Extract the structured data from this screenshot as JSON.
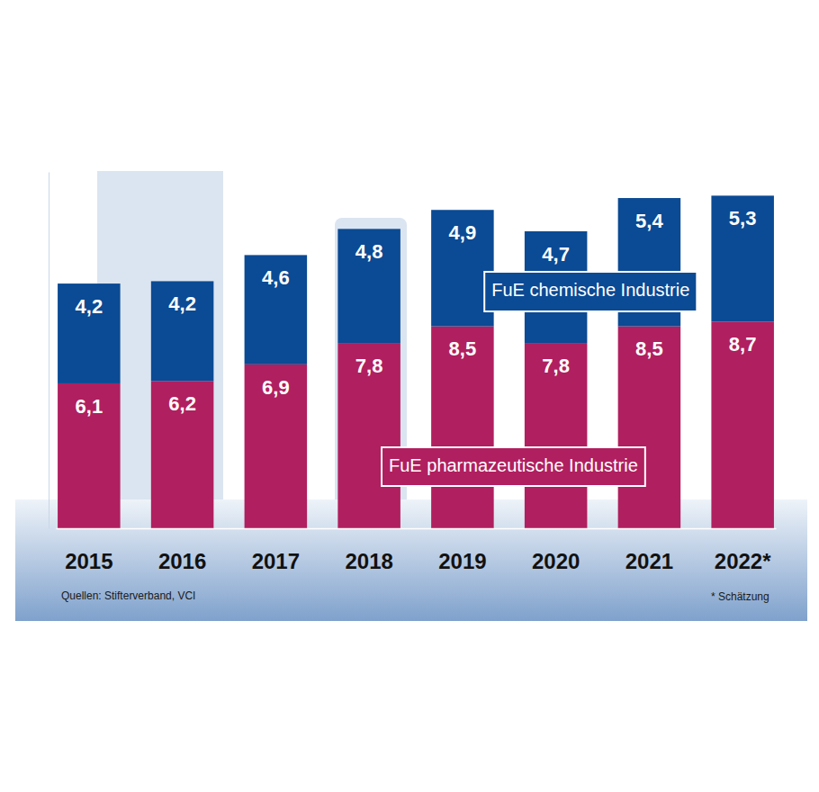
{
  "chart_data": {
    "type": "bar",
    "stacked": true,
    "data_labels": true,
    "tick_labels": "x",
    "categories": [
      "2015",
      "2016",
      "2017",
      "2018",
      "2019",
      "2020",
      "2021",
      "2022*"
    ],
    "ylim": [
      0,
      15
    ],
    "series": [
      {
        "name": "FuE pharmazeutische Industrie",
        "color": "#b01f5f",
        "values": [
          6.1,
          6.2,
          6.9,
          7.8,
          8.5,
          7.8,
          8.5,
          8.7
        ],
        "value_labels": [
          "6,1",
          "6,2",
          "6,9",
          "7,8",
          "8,5",
          "7,8",
          "8,5",
          "8,7"
        ]
      },
      {
        "name": "FuE chemische Industrie",
        "color": "#0b4a94",
        "values": [
          4.2,
          4.2,
          4.6,
          4.8,
          4.9,
          4.7,
          5.4,
          5.3
        ],
        "value_labels": [
          "4,2",
          "4,2",
          "4,6",
          "4,8",
          "4,9",
          "4,7",
          "5,4",
          "5,3"
        ]
      }
    ],
    "annotations": [
      "Quellen: Stifterverband, VCI",
      "* Schätzung"
    ]
  }
}
